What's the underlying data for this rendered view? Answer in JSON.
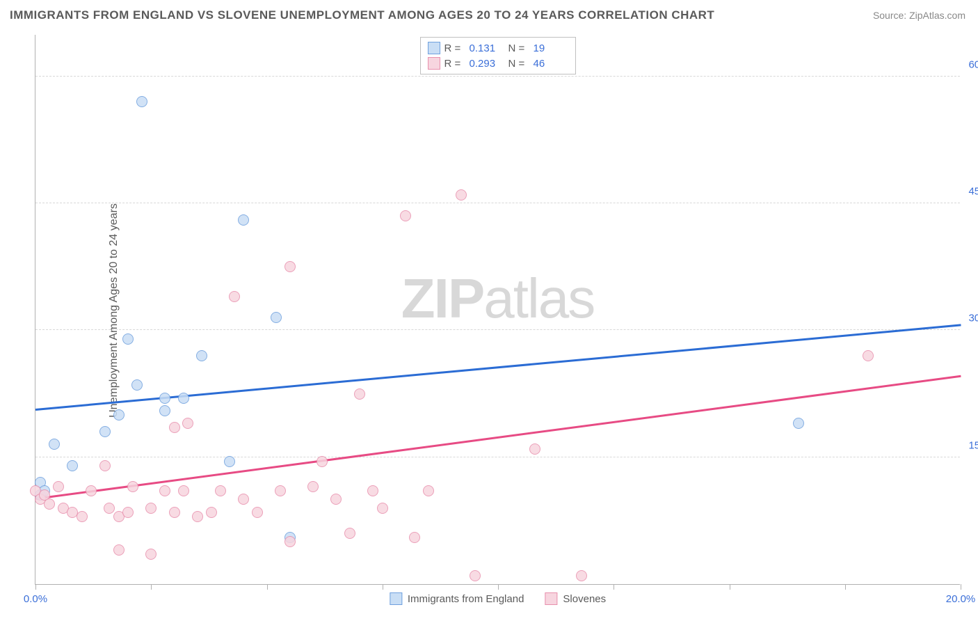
{
  "title": "IMMIGRANTS FROM ENGLAND VS SLOVENE UNEMPLOYMENT AMONG AGES 20 TO 24 YEARS CORRELATION CHART",
  "source": "Source: ZipAtlas.com",
  "ylabel": "Unemployment Among Ages 20 to 24 years",
  "watermark_bold": "ZIP",
  "watermark_rest": "atlas",
  "chart": {
    "type": "scatter",
    "xlim": [
      0,
      20
    ],
    "ylim": [
      0,
      65
    ],
    "x_ticks": [
      0,
      2.5,
      5,
      7.5,
      10,
      12.5,
      15,
      17.5,
      20
    ],
    "x_tick_labels": {
      "0": "0.0%",
      "20": "20.0%"
    },
    "y_ticks": [
      15,
      30,
      45,
      60
    ],
    "y_tick_labels": {
      "15": "15.0%",
      "30": "30.0%",
      "45": "45.0%",
      "60": "60.0%"
    },
    "background_color": "#ffffff",
    "grid_color": "#d8d8d8",
    "axis_color": "#b0b0b0",
    "tick_label_color": "#3b6fd8",
    "point_radius": 8,
    "series": [
      {
        "name": "Immigrants from England",
        "color_fill": "#c9def5",
        "color_border": "#6fa0de",
        "trend_color": "#2b6cd4",
        "R": "0.131",
        "N": "19",
        "trend": {
          "x1": 0,
          "y1": 20.5,
          "x2": 20,
          "y2": 30.5
        },
        "points": [
          [
            0.1,
            12.0
          ],
          [
            0.1,
            10.5
          ],
          [
            0.2,
            11.0
          ],
          [
            0.4,
            16.5
          ],
          [
            0.8,
            14.0
          ],
          [
            1.5,
            18.0
          ],
          [
            1.8,
            20.0
          ],
          [
            2.0,
            29.0
          ],
          [
            2.2,
            23.5
          ],
          [
            2.3,
            57.0
          ],
          [
            2.8,
            20.5
          ],
          [
            2.8,
            22.0
          ],
          [
            3.2,
            22.0
          ],
          [
            3.6,
            27.0
          ],
          [
            4.2,
            14.5
          ],
          [
            4.5,
            43.0
          ],
          [
            5.2,
            31.5
          ],
          [
            5.5,
            5.5
          ],
          [
            16.5,
            19.0
          ]
        ]
      },
      {
        "name": "Slovenes",
        "color_fill": "#f7d5df",
        "color_border": "#e890ad",
        "trend_color": "#e74b84",
        "R": "0.293",
        "N": "46",
        "trend": {
          "x1": 0,
          "y1": 10.0,
          "x2": 20,
          "y2": 24.5
        },
        "points": [
          [
            0.0,
            11.0
          ],
          [
            0.1,
            10.0
          ],
          [
            0.2,
            10.5
          ],
          [
            0.3,
            9.5
          ],
          [
            0.5,
            11.5
          ],
          [
            0.6,
            9.0
          ],
          [
            0.8,
            8.5
          ],
          [
            1.0,
            8.0
          ],
          [
            1.2,
            11.0
          ],
          [
            1.5,
            14.0
          ],
          [
            1.6,
            9.0
          ],
          [
            1.8,
            8.0
          ],
          [
            1.8,
            4.0
          ],
          [
            2.0,
            8.5
          ],
          [
            2.1,
            11.5
          ],
          [
            2.5,
            9.0
          ],
          [
            2.5,
            3.5
          ],
          [
            2.8,
            11.0
          ],
          [
            3.0,
            18.5
          ],
          [
            3.0,
            8.5
          ],
          [
            3.2,
            11.0
          ],
          [
            3.3,
            19.0
          ],
          [
            3.5,
            8.0
          ],
          [
            3.8,
            8.5
          ],
          [
            4.0,
            11.0
          ],
          [
            4.3,
            34.0
          ],
          [
            4.5,
            10.0
          ],
          [
            4.8,
            8.5
          ],
          [
            5.3,
            11.0
          ],
          [
            5.5,
            5.0
          ],
          [
            5.5,
            37.5
          ],
          [
            6.0,
            11.5
          ],
          [
            6.2,
            14.5
          ],
          [
            6.5,
            10.0
          ],
          [
            7.0,
            22.5
          ],
          [
            7.3,
            11.0
          ],
          [
            7.5,
            9.0
          ],
          [
            8.0,
            43.5
          ],
          [
            8.2,
            5.5
          ],
          [
            8.5,
            11.0
          ],
          [
            9.2,
            46.0
          ],
          [
            9.5,
            1.0
          ],
          [
            10.8,
            16.0
          ],
          [
            11.8,
            1.0
          ],
          [
            18.0,
            27.0
          ],
          [
            6.8,
            6.0
          ]
        ]
      }
    ],
    "legend_bottom": [
      {
        "label": "Immigrants from England",
        "fill": "#c9def5",
        "border": "#6fa0de"
      },
      {
        "label": "Slovenes",
        "fill": "#f7d5df",
        "border": "#e890ad"
      }
    ]
  }
}
